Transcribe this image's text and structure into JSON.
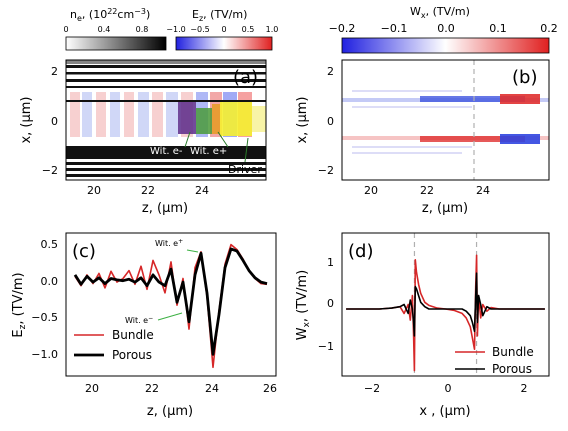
{
  "colorbars": {
    "ne": {
      "label": "n",
      "label_sub": "e",
      "label_rest": ", (10",
      "label_sup": "22",
      "label_end": "cm",
      "label_sup2": "−3",
      "label_close": ")",
      "ticks": [
        "0",
        "0.4",
        "0.8"
      ]
    },
    "ez": {
      "label": "E",
      "label_sub": "z",
      "label_rest": ", (TV/m)",
      "ticks": [
        "−1.0",
        "−0.5",
        "0",
        "0.5",
        "1.0"
      ]
    },
    "wx": {
      "label": "W",
      "label_sub": "x",
      "label_rest": ", (TV/m)",
      "ticks": [
        "−0.2",
        "−0.1",
        "0.0",
        "0.1",
        "0.2"
      ]
    }
  },
  "panels": {
    "a": {
      "label": "(a)",
      "ylabel": "x, (μm)",
      "xlabel": "z, (μm)",
      "xticks": [
        "20",
        "22",
        "24"
      ],
      "yticks": [
        "2",
        "0",
        "−2"
      ],
      "annotations": {
        "wit_eminus": "Wit. e-",
        "wit_eplus": "Wit. e+",
        "driver": "Driver"
      }
    },
    "b": {
      "label": "(b)",
      "ylabel": "x, (μm)",
      "xlabel": "z, (μm)",
      "xticks": [
        "20",
        "22",
        "24"
      ],
      "yticks": [
        "2",
        "0",
        "−2"
      ]
    },
    "c": {
      "label": "(c)",
      "ylabel": "E",
      "ylabel_sub": "z",
      "ylabel_rest": ", (TV/m)",
      "xlabel": "z, (μm)",
      "xticks": [
        "20",
        "22",
        "24",
        "26"
      ],
      "yticks": [
        "0.5",
        "0.0",
        "−0.5",
        "−1.0"
      ],
      "annotations": {
        "wit_eplus": "Wit. e",
        "wit_eplus_sup": "+",
        "wit_eminus": "Wit. e",
        "wit_eminus_sup": "−"
      }
    },
    "d": {
      "label": "(d)",
      "ylabel": "W",
      "ylabel_sub": "x",
      "ylabel_rest": ", (TV/m)",
      "xlabel": "x , (μm)",
      "xticks": [
        "−2",
        "0",
        "2"
      ],
      "yticks": [
        "1",
        "0",
        "−1"
      ]
    }
  },
  "colors": {
    "bundle": "#d62728",
    "porous": "#000000",
    "dashed": "#b0b0b0"
  },
  "chart_data": [
    {
      "panel": "a",
      "type": "heatmap",
      "xlabel": "z, (μm)",
      "ylabel": "x, (μm)",
      "xlim": [
        19.6,
        25.9
      ],
      "ylim": [
        -2.4,
        2.4
      ]
    },
    {
      "panel": "b",
      "type": "heatmap",
      "xlabel": "z, (μm)",
      "ylabel": "x, (μm)",
      "xlim": [
        19.6,
        25.9
      ],
      "ylim": [
        -2.4,
        2.4
      ],
      "vline_z": 23.6
    },
    {
      "panel": "c",
      "type": "line",
      "xlabel": "z, (μm)",
      "ylabel": "Ez, (TV/m)",
      "xlim": [
        19.2,
        26.2
      ],
      "ylim": [
        -1.3,
        0.68
      ],
      "legend": "lower-left",
      "x": [
        19.5,
        19.7,
        19.9,
        20.1,
        20.3,
        20.5,
        20.7,
        20.9,
        21.1,
        21.3,
        21.5,
        21.7,
        21.9,
        22.1,
        22.3,
        22.5,
        22.7,
        22.9,
        23.1,
        23.3,
        23.5,
        23.7,
        23.9,
        24.1,
        24.3,
        24.5,
        24.7,
        24.9,
        25.1,
        25.3,
        25.5,
        25.7,
        25.9
      ],
      "series": [
        {
          "name": "Bundle",
          "values": [
            0.08,
            -0.05,
            0.1,
            -0.02,
            0.12,
            -0.08,
            0.15,
            0.0,
            0.05,
            0.16,
            -0.03,
            0.22,
            -0.1,
            0.3,
            0.1,
            -0.15,
            0.28,
            -0.32,
            0.05,
            -0.65,
            0.2,
            0.42,
            -0.2,
            -1.18,
            -0.4,
            0.25,
            0.52,
            0.45,
            0.32,
            0.15,
            0.05,
            -0.02,
            -0.03
          ]
        },
        {
          "name": "Porous",
          "values": [
            0.1,
            -0.03,
            0.08,
            0.0,
            0.06,
            -0.02,
            0.05,
            0.03,
            0.02,
            0.04,
            0.0,
            0.06,
            -0.05,
            0.1,
            0.0,
            -0.05,
            0.18,
            -0.28,
            0.0,
            -0.55,
            0.1,
            0.4,
            -0.15,
            -1.0,
            -0.45,
            0.2,
            0.46,
            0.43,
            0.3,
            0.16,
            0.06,
            0.0,
            -0.02
          ]
        }
      ]
    },
    {
      "panel": "d",
      "type": "line",
      "xlabel": "x , (μm)",
      "ylabel": "Wx, (TV/m)",
      "xlim": [
        -2.5,
        2.5
      ],
      "ylim": [
        -1.5,
        1.7
      ],
      "legend": "lower-right",
      "vlines_x": [
        -0.75,
        0.75
      ],
      "x": [
        -2.4,
        -2.0,
        -1.6,
        -1.3,
        -1.1,
        -1.0,
        -0.9,
        -0.85,
        -0.8,
        -0.77,
        -0.75,
        -0.73,
        -0.7,
        -0.65,
        -0.6,
        -0.5,
        -0.4,
        -0.2,
        0.0,
        0.2,
        0.4,
        0.5,
        0.6,
        0.65,
        0.7,
        0.73,
        0.75,
        0.77,
        0.8,
        0.85,
        0.9,
        1.0,
        1.1,
        1.3,
        1.6,
        2.0,
        2.4
      ],
      "series": [
        {
          "name": "Bundle",
          "values": [
            0.0,
            0.0,
            0.0,
            0.02,
            0.05,
            -0.1,
            0.1,
            -0.25,
            0.3,
            -0.6,
            -1.38,
            1.1,
            0.82,
            0.55,
            0.35,
            0.15,
            0.08,
            0.02,
            0.0,
            -0.03,
            -0.1,
            -0.2,
            -0.4,
            -0.65,
            -0.9,
            0.5,
            1.2,
            -0.6,
            0.3,
            -0.2,
            0.1,
            -0.05,
            0.03,
            0.0,
            0.0,
            0.0,
            0.0
          ]
        },
        {
          "name": "Porous",
          "values": [
            0.0,
            0.0,
            0.0,
            0.02,
            0.05,
            0.1,
            -0.1,
            0.2,
            0.0,
            -0.3,
            -0.6,
            0.5,
            0.45,
            0.3,
            0.15,
            0.05,
            0.0,
            0.0,
            0.0,
            0.0,
            0.0,
            -0.05,
            -0.15,
            -0.3,
            -0.5,
            0.3,
            0.8,
            -0.3,
            0.3,
            0.1,
            -0.15,
            0.05,
            0.0,
            0.0,
            0.0,
            0.0,
            0.0
          ]
        }
      ]
    }
  ]
}
